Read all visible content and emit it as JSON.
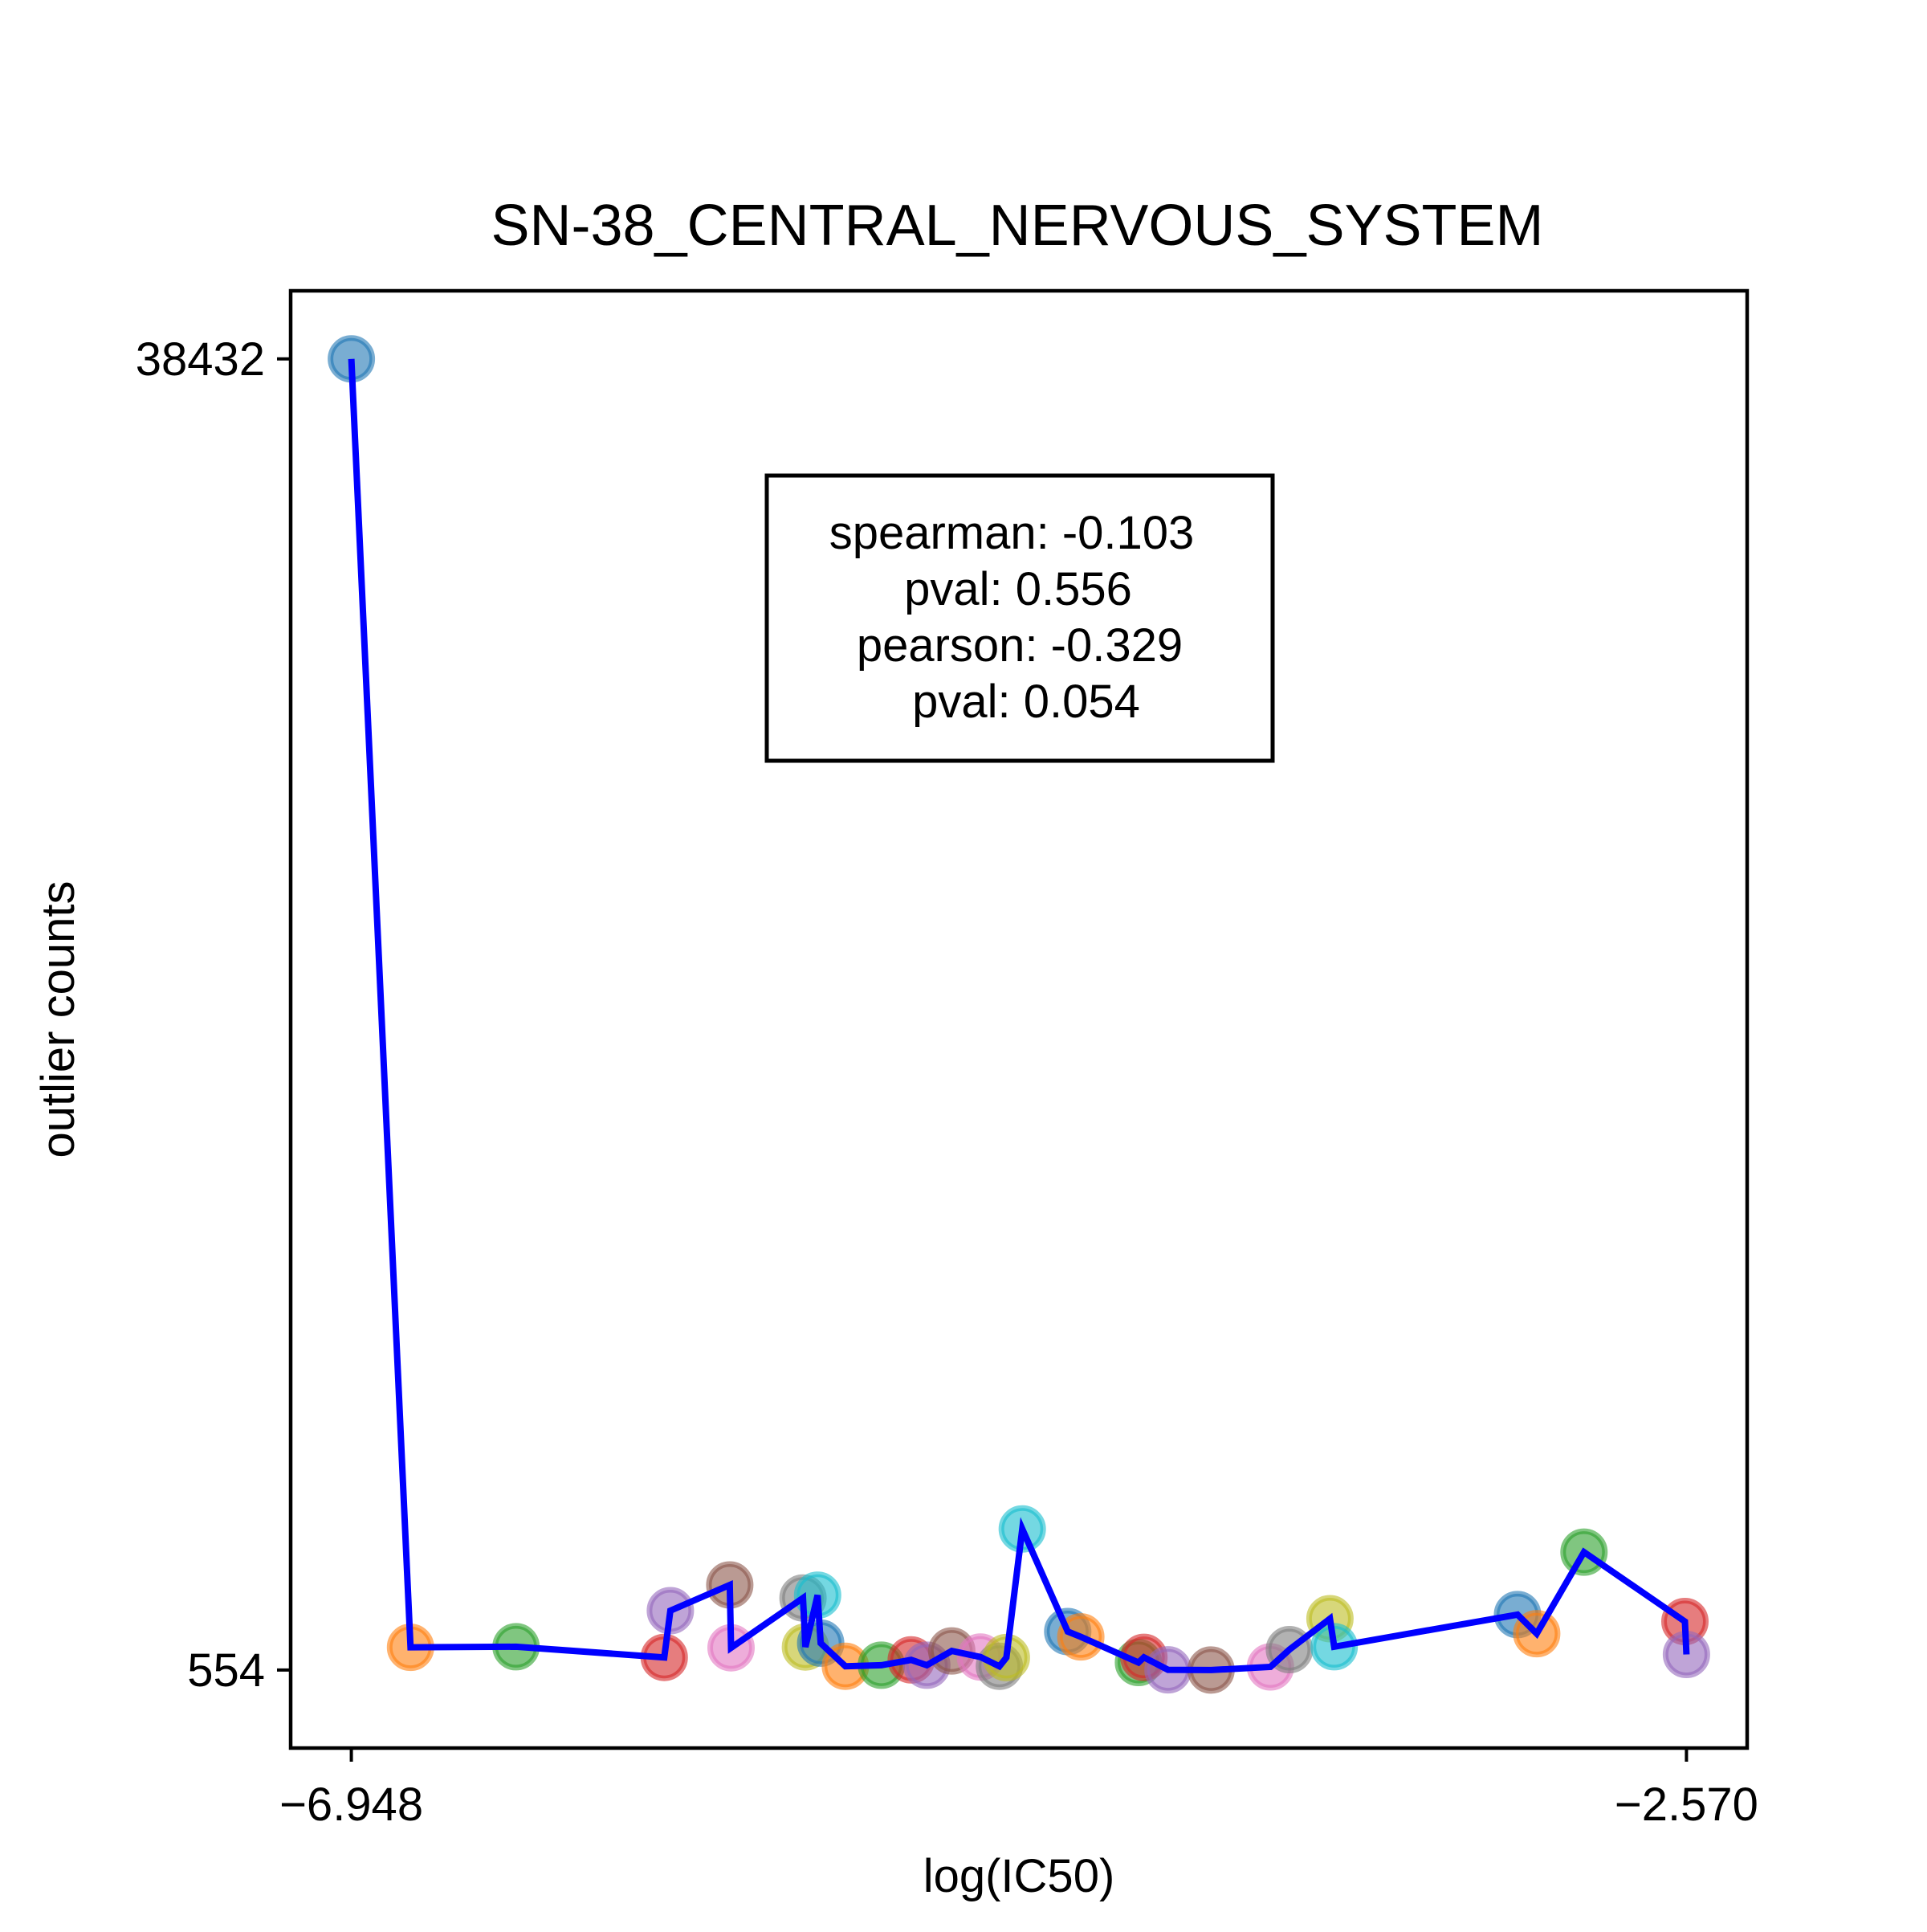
{
  "chart_data": {
    "type": "scatter",
    "title": "SN-38_CENTRAL_NERVOUS_SYSTEM",
    "xlabel": "log(IC50)",
    "ylabel": "outlier counts",
    "xticks": [
      "−6.948",
      "−2.570"
    ],
    "xtick_values": [
      -6.948,
      -2.57
    ],
    "yticks": [
      "38432",
      "554"
    ],
    "ytick_values": [
      38432,
      554
    ],
    "xlim": [
      -7.147,
      -2.371
    ],
    "ylim": [
      -1700,
      40400
    ],
    "grid": false,
    "annotation": {
      "lines": [
        "spearman: -0.103",
        "pval: 0.556",
        "pearson: -0.329",
        "pval: 0.054"
      ]
    },
    "line_color": "#0000ff",
    "marker_colors": [
      "#1f77b4",
      "#ff7f0e",
      "#2ca02c",
      "#d62728",
      "#9467bd",
      "#8c564b",
      "#e377c2",
      "#7f7f7f",
      "#bcbd22",
      "#17becf"
    ],
    "points": [
      {
        "x": -6.948,
        "y": 38432,
        "color": "#1f77b4"
      },
      {
        "x": -6.754,
        "y": 1211,
        "color": "#ff7f0e"
      },
      {
        "x": -6.408,
        "y": 1226,
        "color": "#2ca02c"
      },
      {
        "x": -5.922,
        "y": 918,
        "color": "#d62728"
      },
      {
        "x": -5.902,
        "y": 2269,
        "color": "#9467bd"
      },
      {
        "x": -5.707,
        "y": 3012,
        "color": "#8c564b"
      },
      {
        "x": -5.703,
        "y": 1197,
        "color": "#e377c2"
      },
      {
        "x": -5.467,
        "y": 2635,
        "color": "#7f7f7f"
      },
      {
        "x": -5.459,
        "y": 1220,
        "color": "#bcbd22"
      },
      {
        "x": -5.419,
        "y": 2717,
        "color": "#17becf"
      },
      {
        "x": -5.409,
        "y": 1332,
        "color": "#1f77b4"
      },
      {
        "x": -5.328,
        "y": 663,
        "color": "#ff7f0e"
      },
      {
        "x": -5.21,
        "y": 692,
        "color": "#2ca02c"
      },
      {
        "x": -5.112,
        "y": 847,
        "color": "#d62728"
      },
      {
        "x": -5.061,
        "y": 692,
        "color": "#9467bd"
      },
      {
        "x": -4.979,
        "y": 1106,
        "color": "#8c564b"
      },
      {
        "x": -4.885,
        "y": 930,
        "color": "#e377c2"
      },
      {
        "x": -4.823,
        "y": 663,
        "color": "#7f7f7f"
      },
      {
        "x": -4.8,
        "y": 913,
        "color": "#bcbd22"
      },
      {
        "x": -4.748,
        "y": 4628,
        "color": "#17becf"
      },
      {
        "x": -4.599,
        "y": 1666,
        "color": "#1f77b4"
      },
      {
        "x": -4.556,
        "y": 1512,
        "color": "#ff7f0e"
      },
      {
        "x": -4.367,
        "y": 772,
        "color": "#2ca02c"
      },
      {
        "x": -4.349,
        "y": 921,
        "color": "#d62728"
      },
      {
        "x": -4.27,
        "y": 561,
        "color": "#9467bd"
      },
      {
        "x": -4.129,
        "y": 554,
        "color": "#8c564b"
      },
      {
        "x": -3.934,
        "y": 643,
        "color": "#e377c2"
      },
      {
        "x": -3.872,
        "y": 1142,
        "color": "#7f7f7f"
      },
      {
        "x": -3.739,
        "y": 2037,
        "color": "#bcbd22"
      },
      {
        "x": -3.725,
        "y": 1226,
        "color": "#17becf"
      },
      {
        "x": -3.124,
        "y": 2155,
        "color": "#1f77b4"
      },
      {
        "x": -3.061,
        "y": 1606,
        "color": "#ff7f0e"
      },
      {
        "x": -2.906,
        "y": 3960,
        "color": "#2ca02c"
      },
      {
        "x": -2.575,
        "y": 1956,
        "color": "#d62728"
      },
      {
        "x": -2.57,
        "y": 1003,
        "color": "#9467bd"
      }
    ]
  }
}
